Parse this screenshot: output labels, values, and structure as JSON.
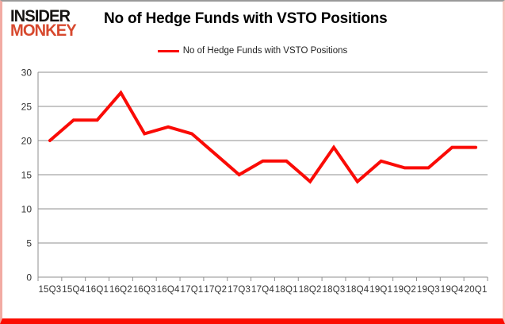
{
  "brand": {
    "line1": "INSIDER",
    "line2": "MONKEY"
  },
  "header": {
    "title": "No of Hedge Funds with VSTO Positions"
  },
  "legend": {
    "label": "No of Hedge Funds with VSTO Positions"
  },
  "colors": {
    "series_line": "#fa0b06",
    "brand_red": "#d7492e",
    "brand_black": "#161412",
    "grid": "#8f8f8f",
    "axis_text": "#333333",
    "border_bottom_red": "#fb0d02"
  },
  "chart_data": {
    "type": "line",
    "title": "No of Hedge Funds with VSTO Positions",
    "xlabel": "",
    "ylabel": "",
    "categories": [
      "15Q3",
      "15Q4",
      "16Q1",
      "16Q2",
      "16Q3",
      "16Q4",
      "17Q1",
      "17Q2",
      "17Q3",
      "17Q4",
      "18Q1",
      "18Q2",
      "18Q3",
      "18Q4",
      "19Q1",
      "19Q2",
      "19Q3",
      "19Q4",
      "20Q1"
    ],
    "series": [
      {
        "name": "No of Hedge Funds with VSTO Positions",
        "values": [
          20,
          23,
          23,
          27,
          21,
          22,
          21,
          18,
          15,
          17,
          17,
          14,
          19,
          14,
          17,
          16,
          16,
          19,
          19
        ]
      }
    ],
    "ylim": [
      0,
      30
    ],
    "yticks": [
      0,
      5,
      10,
      15,
      20,
      25,
      30
    ],
    "grid": true,
    "legend_position": "top"
  }
}
